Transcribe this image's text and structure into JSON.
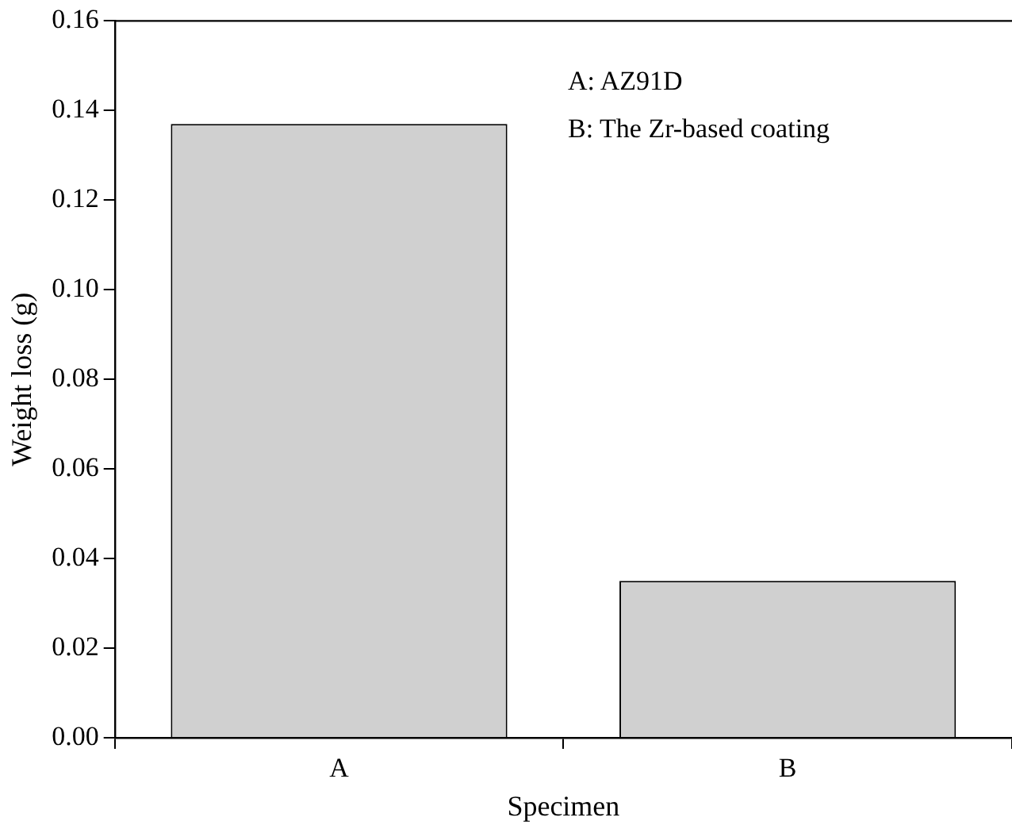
{
  "chart_data": {
    "type": "bar",
    "xlabel": "Specimen",
    "ylabel": "Weight loss (g)",
    "categories": [
      "A",
      "B"
    ],
    "values": [
      0.137,
      0.035
    ],
    "color": "#d0d0d0",
    "ylim": [
      0,
      0.16
    ],
    "yticks": [
      {
        "value": 0,
        "label": "0.00"
      },
      {
        "value": 0.02,
        "label": "0.02"
      },
      {
        "value": 0.04,
        "label": "0.04"
      },
      {
        "value": 0.06,
        "label": "0.06"
      },
      {
        "value": 0.08,
        "label": "0.08"
      },
      {
        "value": 0.1,
        "label": "0.10"
      },
      {
        "value": 0.12,
        "label": "0.12"
      },
      {
        "value": 0.14,
        "label": "0.14"
      },
      {
        "value": 0.16,
        "label": "0.16"
      }
    ],
    "annotations": [
      "A: AZ91D",
      "B: The Zr-based coating"
    ],
    "grid": false,
    "legend": false
  }
}
